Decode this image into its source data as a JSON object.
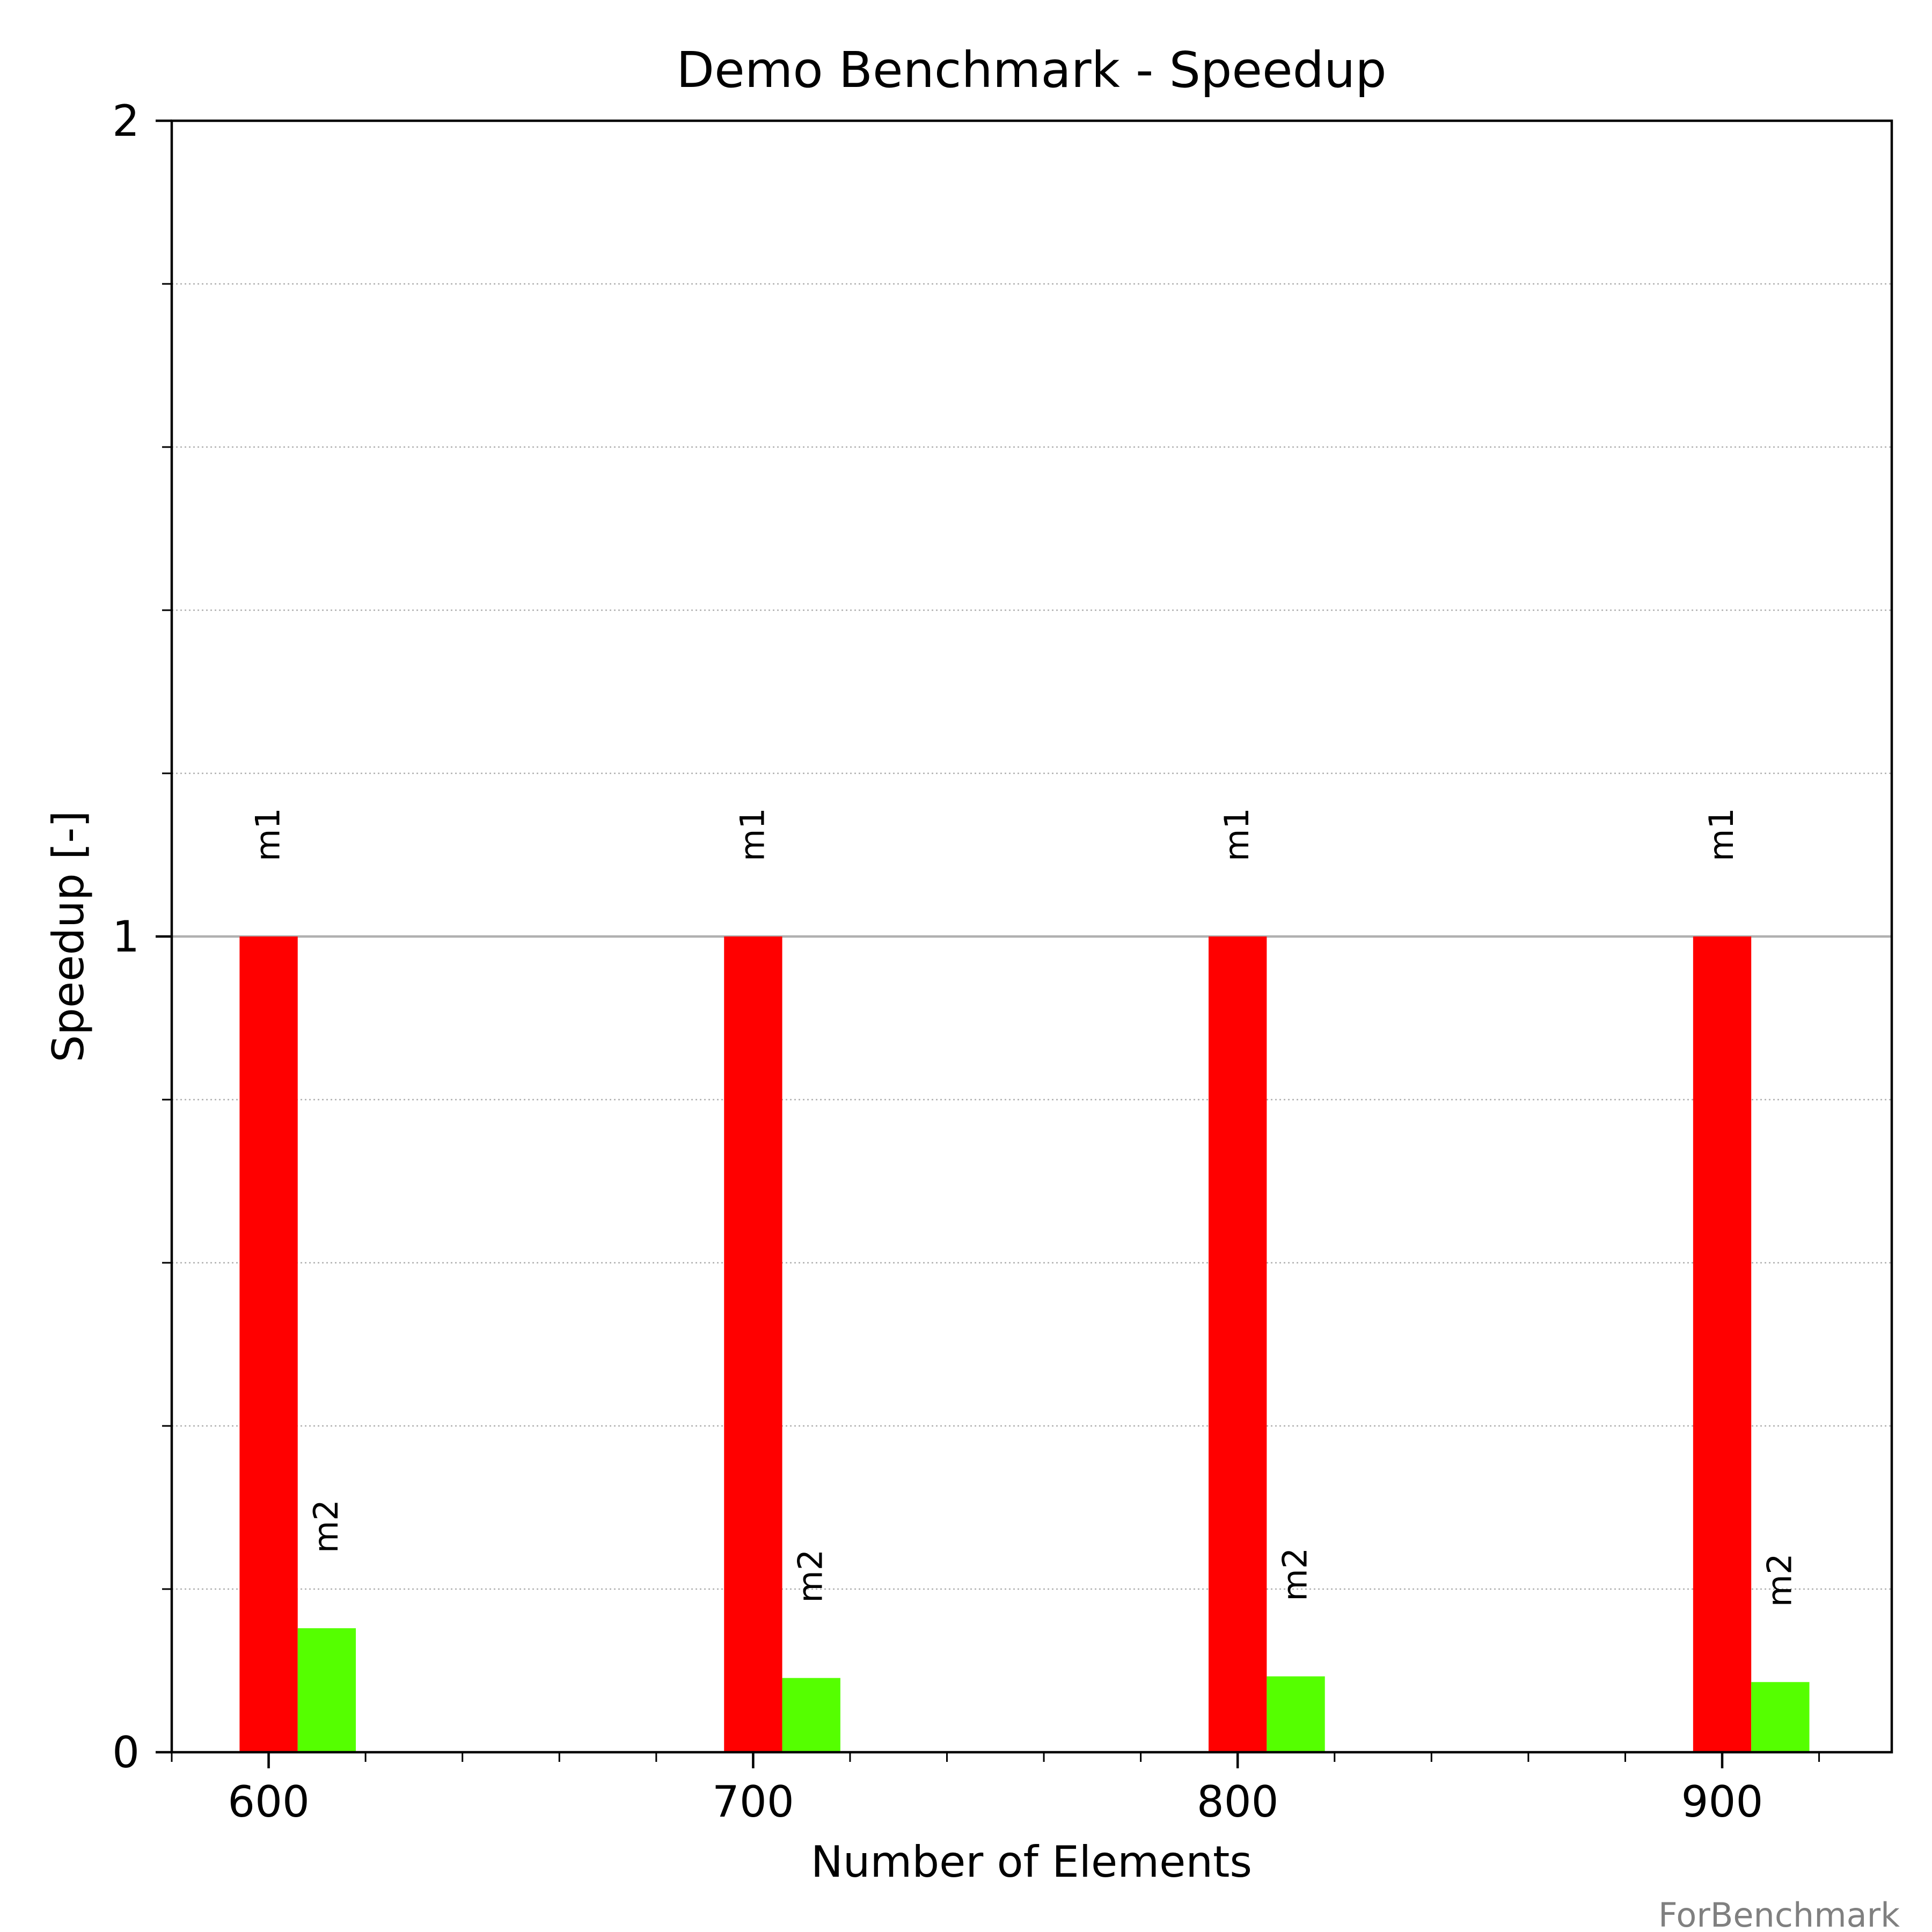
{
  "chart_data": {
    "type": "bar",
    "title": "Demo Benchmark - Speedup",
    "xlabel": "Number of Elements",
    "ylabel": "Speedup [-]",
    "categories": [
      600,
      700,
      800,
      900
    ],
    "xticks": [
      "600",
      "700",
      "800",
      "900"
    ],
    "xlim": [
      580,
      935
    ],
    "ylim": [
      0,
      2
    ],
    "yticks": [
      "0",
      "1",
      "2"
    ],
    "minor_grid": true,
    "reference_line": 1,
    "series": [
      {
        "name": "m1",
        "color": "#ff0000",
        "values": [
          1.0,
          1.0,
          1.0,
          1.0
        ]
      },
      {
        "name": "m2",
        "color": "#55ff00",
        "values": [
          0.152,
          0.091,
          0.093,
          0.086
        ]
      }
    ],
    "bar_labels": [
      [
        "m1",
        "m1",
        "m1",
        "m1"
      ],
      [
        "m2",
        "m2",
        "m2",
        "m2"
      ]
    ],
    "watermark": "ForBenchmark"
  }
}
